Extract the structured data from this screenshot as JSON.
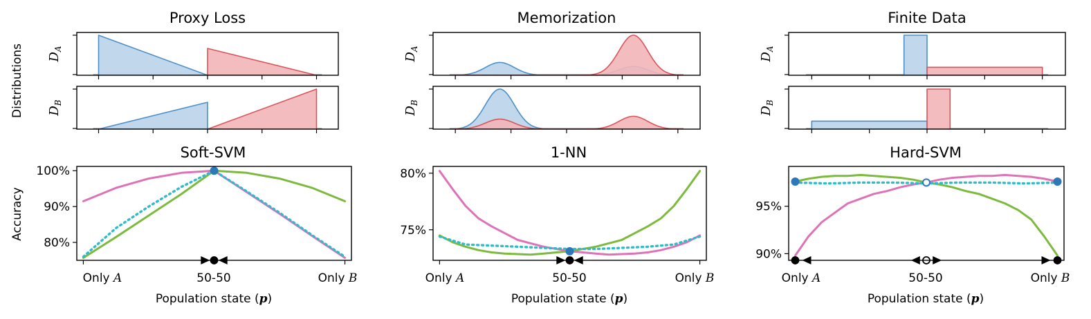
{
  "figure": {
    "row_label_top": "Distributions",
    "row_label_bottom": "Accuracy",
    "xlabel_prefix": "Population state (",
    "xlabel_var": "p",
    "xlabel_suffix": ")",
    "xtick_only": "Only",
    "xtick_A": "A",
    "xtick_mid": "50-50",
    "xtick_B": "B",
    "dist_label_A_main": "D",
    "dist_label_A_sub": "A",
    "dist_label_B_main": "D",
    "dist_label_B_sub": "B"
  },
  "colors": {
    "blue_line": "#4d8fc6",
    "blue_fill": "#b9d3ea",
    "red_line": "#d9545a",
    "red_fill": "#f2b6b9",
    "pink": "#dd72b8",
    "green": "#7cba3d",
    "cyan": "#2cbccc",
    "dot_blue": "#2e78b8"
  },
  "chart_data": [
    {
      "type": "area",
      "title": "Proxy Loss",
      "role": "distributions",
      "panel": "D_A",
      "x_range": [
        -1.2,
        1.2
      ],
      "series": [
        {
          "name": "group A",
          "points": [
            [
              -1,
              0
            ],
            [
              -1,
              1
            ],
            [
              0,
              0
            ]
          ]
        },
        {
          "name": "group B",
          "points": [
            [
              0,
              0
            ],
            [
              0,
              0.67
            ],
            [
              1,
              0
            ]
          ]
        }
      ]
    },
    {
      "type": "area",
      "title": "Proxy Loss",
      "role": "distributions",
      "panel": "D_B",
      "x_range": [
        -1.2,
        1.2
      ],
      "series": [
        {
          "name": "group A",
          "points": [
            [
              -1,
              0
            ],
            [
              0,
              0.67
            ],
            [
              0,
              0
            ]
          ]
        },
        {
          "name": "group B",
          "points": [
            [
              0,
              0
            ],
            [
              1,
              1
            ],
            [
              1,
              0
            ]
          ]
        }
      ]
    },
    {
      "type": "area",
      "title": "Memorization",
      "role": "distributions",
      "panel": "D_A",
      "x_range": [
        -1.2,
        1.2
      ],
      "series": [
        {
          "name": "group A",
          "gaussians": [
            {
              "mu": -0.6,
              "sigma": 0.13,
              "amp": 0.32
            },
            {
              "mu": 0.6,
              "sigma": 0.13,
              "amp": 0.22
            }
          ]
        },
        {
          "name": "group B",
          "gaussians": [
            {
              "mu": 0.6,
              "sigma": 0.13,
              "amp": 1.0
            }
          ]
        }
      ]
    },
    {
      "type": "area",
      "title": "Memorization",
      "role": "distributions",
      "panel": "D_B",
      "x_range": [
        -1.2,
        1.2
      ],
      "series": [
        {
          "name": "group A",
          "gaussians": [
            {
              "mu": -0.6,
              "sigma": 0.13,
              "amp": 1.0
            }
          ]
        },
        {
          "name": "group B",
          "gaussians": [
            {
              "mu": -0.6,
              "sigma": 0.13,
              "amp": 0.25
            },
            {
              "mu": 0.6,
              "sigma": 0.13,
              "amp": 0.32
            }
          ]
        }
      ]
    },
    {
      "type": "area",
      "title": "Finite Data",
      "role": "distributions",
      "panel": "D_A",
      "x_range": [
        -1.2,
        1.2
      ],
      "series": [
        {
          "name": "group A",
          "points": [
            [
              -0.2,
              0
            ],
            [
              -0.2,
              1
            ],
            [
              0,
              1
            ],
            [
              0,
              0
            ]
          ]
        },
        {
          "name": "group B",
          "points": [
            [
              0,
              0
            ],
            [
              0,
              0.2
            ],
            [
              1,
              0.2
            ],
            [
              1,
              0
            ]
          ]
        }
      ]
    },
    {
      "type": "area",
      "title": "Finite Data",
      "role": "distributions",
      "panel": "D_B",
      "x_range": [
        -1.2,
        1.2
      ],
      "series": [
        {
          "name": "group A",
          "points": [
            [
              -1,
              0
            ],
            [
              -1,
              0.2
            ],
            [
              0,
              0.2
            ],
            [
              0,
              0
            ]
          ]
        },
        {
          "name": "group B",
          "points": [
            [
              0,
              0
            ],
            [
              0,
              1
            ],
            [
              0.2,
              1
            ],
            [
              0.2,
              0
            ]
          ]
        }
      ]
    },
    {
      "type": "line",
      "title": "Soft-SVM",
      "xlabel": "Population state (p)",
      "ylabel": "Accuracy",
      "x_range": [
        -1.05,
        1.05
      ],
      "ylim": [
        75,
        101.2
      ],
      "yticks": [
        {
          "v": 80,
          "label": "80%"
        },
        {
          "v": 90,
          "label": "90%"
        },
        {
          "v": 100,
          "label": "100%"
        }
      ],
      "series": [
        {
          "name": "pink",
          "x": [
            -1,
            -0.75,
            -0.5,
            -0.25,
            0,
            0.25,
            0.5,
            0.75,
            1
          ],
          "y": [
            91.5,
            95.2,
            97.8,
            99.4,
            100,
            94,
            88,
            81.8,
            75.7
          ]
        },
        {
          "name": "green",
          "x": [
            -1,
            -0.75,
            -0.5,
            -0.25,
            0,
            0.25,
            0.5,
            0.75,
            1
          ],
          "y": [
            75.7,
            81.5,
            87.5,
            93.5,
            100,
            99.4,
            97.8,
            95.2,
            91.5
          ]
        },
        {
          "name": "cyan dotted",
          "x": [
            -1,
            -0.75,
            -0.5,
            -0.25,
            0,
            0.25,
            0.5,
            0.75,
            1
          ],
          "y": [
            76,
            84,
            90,
            95.5,
            100,
            94.2,
            88.3,
            82,
            76
          ]
        }
      ],
      "markers": [
        {
          "x": 0,
          "y": 100,
          "style": "filled"
        }
      ],
      "dynamics": {
        "fixed": [
          {
            "x": 0,
            "style": "filled"
          }
        ],
        "arrows": [
          {
            "x": -0.07,
            "dir": "right"
          },
          {
            "x": 0.07,
            "dir": "left"
          }
        ]
      }
    },
    {
      "type": "line",
      "title": "1-NN",
      "xlabel": "Population state (p)",
      "ylabel": "",
      "x_range": [
        -1.05,
        1.05
      ],
      "ylim": [
        72.3,
        80.6
      ],
      "yticks": [
        {
          "v": 75,
          "label": "75%"
        },
        {
          "v": 80,
          "label": "80%"
        }
      ],
      "series": [
        {
          "name": "pink",
          "x": [
            -1,
            -0.9,
            -0.8,
            -0.7,
            -0.6,
            -0.5,
            -0.4,
            -0.3,
            -0.2,
            -0.1,
            0,
            0.1,
            0.2,
            0.3,
            0.4,
            0.5,
            0.6,
            0.7,
            0.8,
            0.9,
            1
          ],
          "y": [
            80.2,
            78.6,
            77.1,
            76.0,
            75.3,
            74.7,
            74.1,
            73.8,
            73.5,
            73.3,
            73.1,
            73.0,
            72.9,
            72.8,
            72.85,
            72.9,
            73.0,
            73.2,
            73.5,
            73.9,
            74.5
          ]
        },
        {
          "name": "green",
          "x": [
            -1,
            -0.9,
            -0.8,
            -0.7,
            -0.6,
            -0.5,
            -0.4,
            -0.3,
            -0.2,
            -0.1,
            0,
            0.1,
            0.2,
            0.3,
            0.4,
            0.5,
            0.6,
            0.7,
            0.8,
            0.9,
            1
          ],
          "y": [
            74.5,
            73.9,
            73.5,
            73.2,
            73.0,
            72.9,
            72.85,
            72.8,
            72.9,
            73.0,
            73.1,
            73.3,
            73.5,
            73.8,
            74.1,
            74.7,
            75.3,
            76.0,
            77.1,
            78.6,
            80.2
          ]
        },
        {
          "name": "cyan dotted",
          "x": [
            -1,
            -0.8,
            -0.6,
            -0.4,
            -0.2,
            0,
            0.2,
            0.4,
            0.6,
            0.8,
            1
          ],
          "y": [
            74.4,
            73.7,
            73.6,
            73.5,
            73.4,
            73.3,
            73.3,
            73.4,
            73.5,
            73.7,
            74.4
          ]
        }
      ],
      "markers": [
        {
          "x": 0,
          "y": 73.1,
          "style": "filled"
        }
      ],
      "dynamics": {
        "fixed": [
          {
            "x": 0,
            "style": "filled"
          }
        ],
        "arrows": [
          {
            "x": -0.07,
            "dir": "right"
          },
          {
            "x": 0.07,
            "dir": "left"
          }
        ]
      }
    },
    {
      "type": "line",
      "title": "Hard-SVM",
      "xlabel": "Population state (p)",
      "ylabel": "",
      "x_range": [
        -1.05,
        1.05
      ],
      "ylim": [
        89.3,
        99.2
      ],
      "yticks": [
        {
          "v": 90,
          "label": "90%"
        },
        {
          "v": 95,
          "label": "95%"
        }
      ],
      "series": [
        {
          "name": "pink",
          "x": [
            -1,
            -0.9,
            -0.8,
            -0.7,
            -0.6,
            -0.5,
            -0.4,
            -0.3,
            -0.2,
            -0.1,
            0,
            0.1,
            0.2,
            0.3,
            0.4,
            0.5,
            0.6,
            0.7,
            0.8,
            0.9,
            1
          ],
          "y": [
            89.8,
            91.8,
            93.3,
            94.3,
            95.3,
            95.8,
            96.3,
            96.6,
            97.0,
            97.3,
            97.5,
            97.8,
            98.0,
            98.1,
            98.2,
            98.2,
            98.3,
            98.2,
            98.1,
            97.9,
            97.6
          ]
        },
        {
          "name": "green",
          "x": [
            -1,
            -0.9,
            -0.8,
            -0.7,
            -0.6,
            -0.5,
            -0.4,
            -0.3,
            -0.2,
            -0.1,
            0,
            0.1,
            0.2,
            0.3,
            0.4,
            0.5,
            0.6,
            0.7,
            0.8,
            0.9,
            1
          ],
          "y": [
            97.6,
            97.9,
            98.1,
            98.2,
            98.2,
            98.3,
            98.2,
            98.1,
            98.0,
            97.8,
            97.5,
            97.3,
            97.0,
            96.6,
            96.3,
            95.8,
            95.3,
            94.6,
            93.6,
            91.8,
            89.8
          ]
        },
        {
          "name": "cyan dotted",
          "x": [
            -1,
            -0.75,
            -0.5,
            -0.25,
            0,
            0.25,
            0.5,
            0.75,
            1
          ],
          "y": [
            97.5,
            97.4,
            97.5,
            97.5,
            97.4,
            97.5,
            97.5,
            97.4,
            97.5
          ]
        }
      ],
      "markers": [
        {
          "x": -1,
          "y": 97.6,
          "style": "filled"
        },
        {
          "x": 0,
          "y": 97.5,
          "style": "open"
        },
        {
          "x": 1,
          "y": 97.6,
          "style": "filled"
        }
      ],
      "dynamics": {
        "fixed": [
          {
            "x": -1,
            "style": "filled"
          },
          {
            "x": 0,
            "style": "open"
          },
          {
            "x": 1,
            "style": "filled"
          }
        ],
        "arrows": [
          {
            "x": -0.91,
            "dir": "left"
          },
          {
            "x": -0.08,
            "dir": "left"
          },
          {
            "x": 0.08,
            "dir": "right"
          },
          {
            "x": 0.91,
            "dir": "right"
          }
        ]
      }
    }
  ]
}
